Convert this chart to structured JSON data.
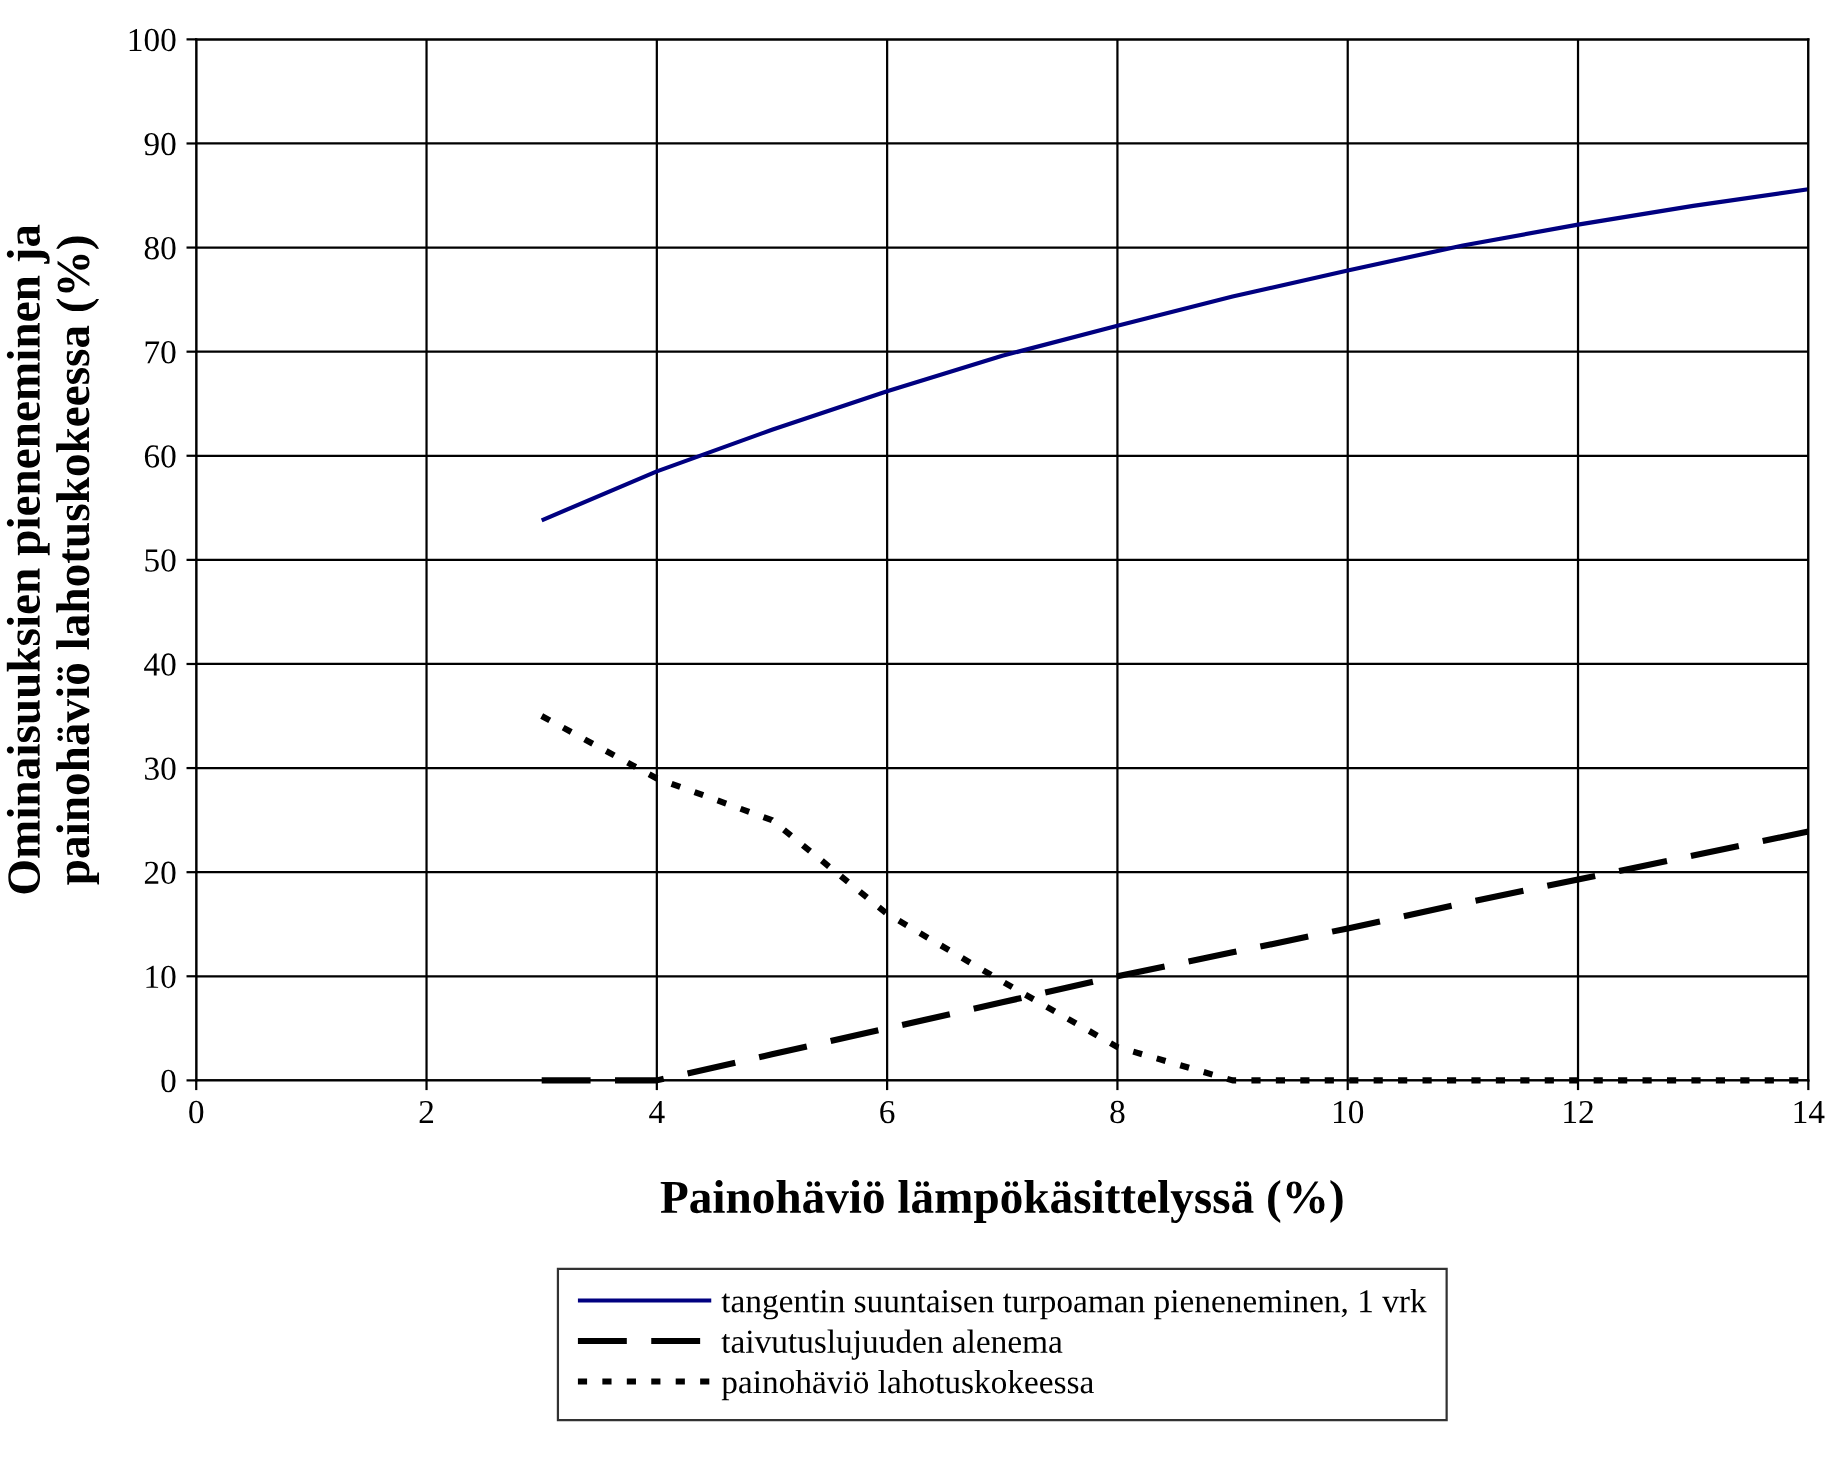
{
  "chart_data": {
    "type": "line",
    "xlabel": "Painohäviö lämpökäsittelyssä (%)",
    "ylabel": "Ominaisuuksien pieneneminen ja\npainohäviö lahotuskokeessa (%)",
    "xlim": [
      0,
      14
    ],
    "xticks": [
      0,
      2,
      4,
      6,
      8,
      10,
      12,
      14
    ],
    "ylim": [
      0,
      100
    ],
    "yticks": [
      0,
      10,
      20,
      30,
      40,
      50,
      60,
      70,
      80,
      90,
      100
    ],
    "grid": true,
    "legend": "bottom",
    "series": [
      {
        "name": "tangentin suuntaisen turpoaman pieneneminen, 1 vrk",
        "color": "#000080",
        "line_style": "solid",
        "x": [
          3,
          4,
          5,
          6,
          7,
          8,
          9,
          10,
          11,
          12,
          13,
          14
        ],
        "values": [
          53.8,
          58.5,
          62.5,
          66.2,
          69.6,
          72.5,
          75.3,
          77.8,
          80.2,
          82.2,
          84,
          85.6
        ]
      },
      {
        "name": "taivutuslujuuden alenema",
        "color": "#000000",
        "line_style": "dashed",
        "x": [
          3,
          4,
          5,
          6,
          7,
          8,
          9,
          10,
          11,
          12,
          13,
          14
        ],
        "values": [
          0,
          0,
          2.5,
          5,
          7.5,
          10,
          12.3,
          14.6,
          17,
          19.3,
          21.6,
          23.9
        ]
      },
      {
        "name": "painohäviö lahotuskokeessa",
        "color": "#000000",
        "line_style": "dotted",
        "x": [
          3,
          4,
          5,
          6,
          7,
          8,
          9,
          10,
          11,
          12,
          13,
          14
        ],
        "values": [
          35,
          29,
          25,
          16,
          9.5,
          3.2,
          0,
          0,
          0,
          0,
          0,
          0
        ]
      }
    ]
  }
}
